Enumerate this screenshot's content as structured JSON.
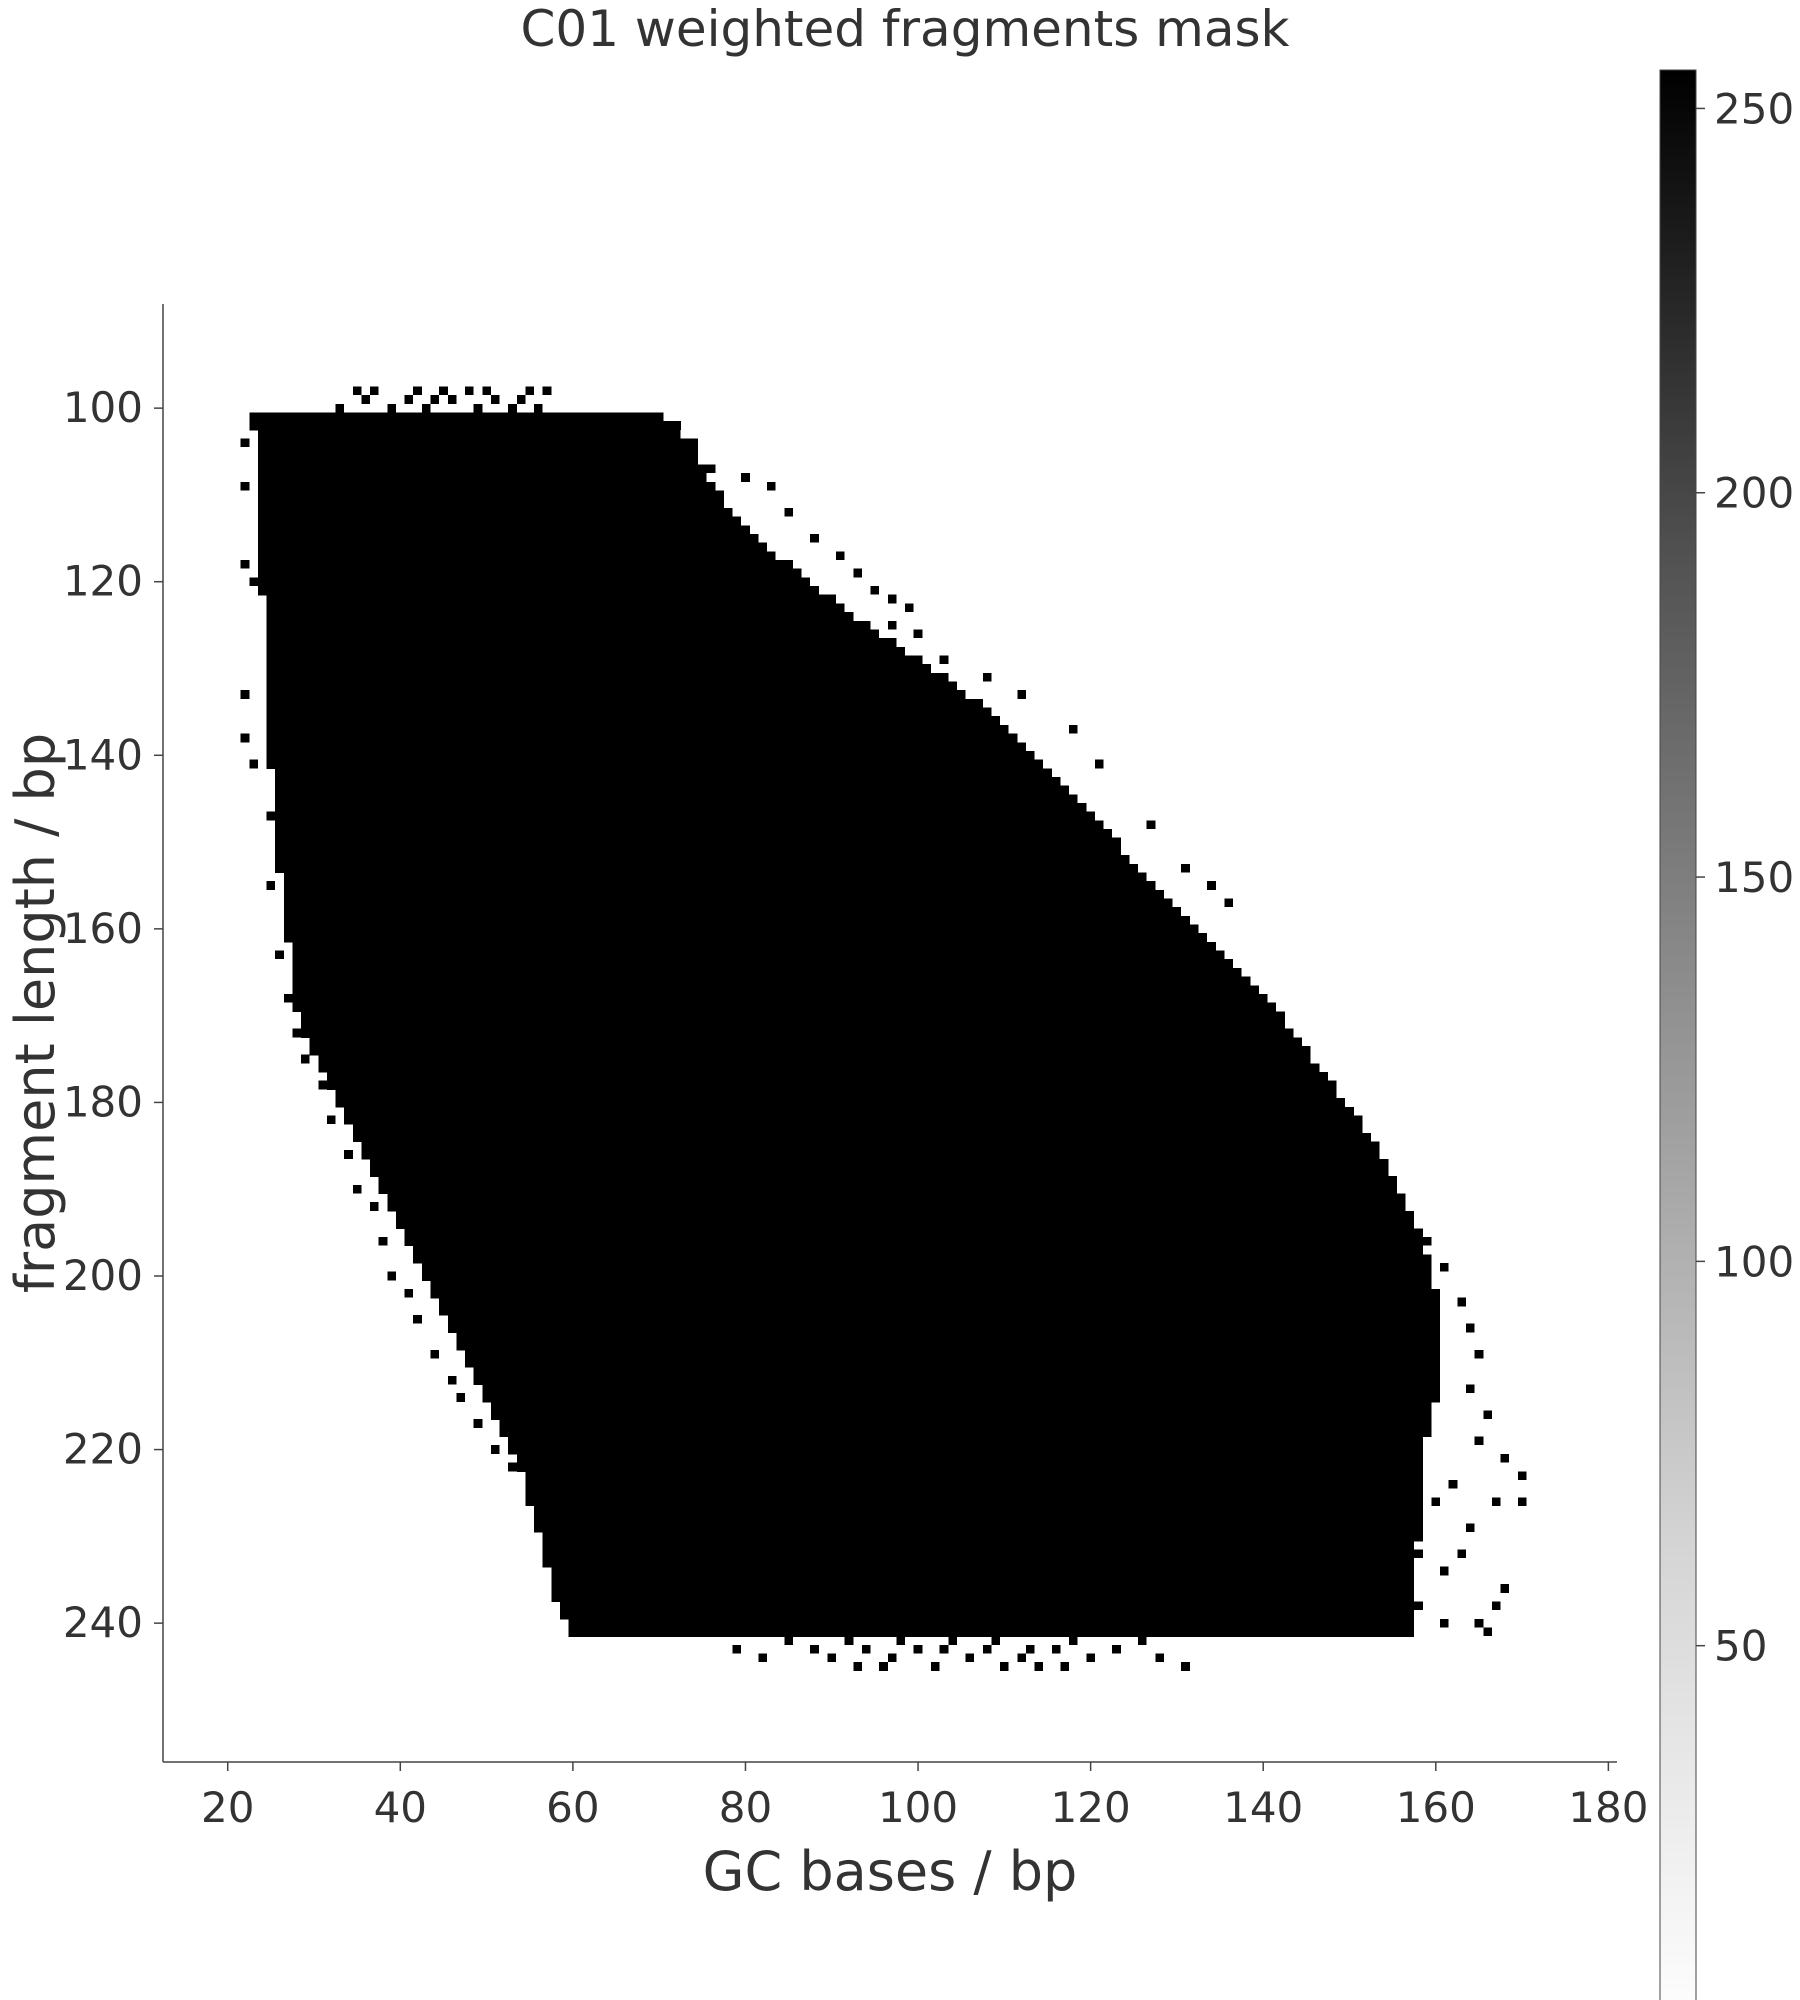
{
  "chart_data": {
    "type": "heatmap",
    "title": "C01 weighted fragments mask",
    "xlabel": "GC bases / bp",
    "ylabel": "fragment length / bp",
    "xlim": [
      12.5,
      181.0
    ],
    "ylim": [
      88.0,
      256.0
    ],
    "y_inverted": true,
    "xticks": [
      20,
      40,
      60,
      80,
      100,
      120,
      140,
      160,
      180
    ],
    "yticks": [
      100,
      120,
      140,
      160,
      180,
      200,
      220,
      240
    ],
    "colormap": "Greys",
    "colorbar": {
      "range": [
        0,
        255
      ],
      "ticks": [
        50,
        100,
        150,
        200,
        250
      ]
    },
    "mask_value": 255,
    "cell_size_bp": 1,
    "core_region": {
      "y_range": [
        101,
        241
      ],
      "row_bounds_gc": [
        [
          101,
          23,
          70
        ],
        [
          104,
          24,
          73
        ],
        [
          108,
          24,
          75
        ],
        [
          112,
          24,
          78
        ],
        [
          116,
          24,
          82
        ],
        [
          120,
          24,
          87
        ],
        [
          124,
          25,
          92
        ],
        [
          128,
          25,
          98
        ],
        [
          132,
          25,
          104
        ],
        [
          136,
          25,
          109
        ],
        [
          140,
          25,
          113
        ],
        [
          144,
          26,
          117
        ],
        [
          148,
          26,
          121
        ],
        [
          152,
          26,
          124
        ],
        [
          156,
          27,
          128
        ],
        [
          160,
          27,
          132
        ],
        [
          164,
          28,
          136
        ],
        [
          168,
          28,
          140
        ],
        [
          172,
          29,
          143
        ],
        [
          176,
          31,
          146
        ],
        [
          180,
          33,
          149
        ],
        [
          184,
          35,
          152
        ],
        [
          188,
          37,
          154
        ],
        [
          192,
          39,
          156
        ],
        [
          196,
          41,
          158
        ],
        [
          200,
          43,
          159
        ],
        [
          204,
          45,
          160
        ],
        [
          208,
          47,
          160
        ],
        [
          212,
          49,
          160
        ],
        [
          216,
          51,
          159
        ],
        [
          220,
          53,
          158
        ],
        [
          224,
          55,
          158
        ],
        [
          228,
          56,
          158
        ],
        [
          232,
          57,
          157
        ],
        [
          236,
          58,
          157
        ],
        [
          241,
          60,
          157
        ]
      ]
    },
    "scatter_cells": [
      [
        35,
        98
      ],
      [
        37,
        98
      ],
      [
        42,
        98
      ],
      [
        45,
        98
      ],
      [
        48,
        98
      ],
      [
        50,
        98
      ],
      [
        55,
        98
      ],
      [
        57,
        98
      ],
      [
        36,
        99
      ],
      [
        41,
        99
      ],
      [
        44,
        99
      ],
      [
        46,
        99
      ],
      [
        51,
        99
      ],
      [
        54,
        99
      ],
      [
        33,
        100
      ],
      [
        39,
        100
      ],
      [
        43,
        100
      ],
      [
        49,
        100
      ],
      [
        53,
        100
      ],
      [
        56,
        100
      ],
      [
        72,
        102
      ],
      [
        74,
        104
      ],
      [
        76,
        107
      ],
      [
        80,
        108
      ],
      [
        83,
        109
      ],
      [
        85,
        112
      ],
      [
        88,
        115
      ],
      [
        91,
        117
      ],
      [
        93,
        119
      ],
      [
        95,
        121
      ],
      [
        97,
        122
      ],
      [
        99,
        123
      ],
      [
        97,
        125
      ],
      [
        100,
        126
      ],
      [
        103,
        129
      ],
      [
        108,
        131
      ],
      [
        112,
        133
      ],
      [
        118,
        137
      ],
      [
        121,
        141
      ],
      [
        127,
        148
      ],
      [
        131,
        153
      ],
      [
        134,
        155
      ],
      [
        136,
        157
      ],
      [
        22,
        104
      ],
      [
        22,
        109
      ],
      [
        22,
        118
      ],
      [
        23,
        120
      ],
      [
        22,
        133
      ],
      [
        22,
        138
      ],
      [
        23,
        141
      ],
      [
        25,
        147
      ],
      [
        25,
        155
      ],
      [
        26,
        163
      ],
      [
        27,
        168
      ],
      [
        28,
        172
      ],
      [
        29,
        175
      ],
      [
        31,
        178
      ],
      [
        32,
        182
      ],
      [
        34,
        186
      ],
      [
        35,
        190
      ],
      [
        37,
        192
      ],
      [
        38,
        196
      ],
      [
        39,
        200
      ],
      [
        41,
        202
      ],
      [
        42,
        205
      ],
      [
        44,
        209
      ],
      [
        46,
        212
      ],
      [
        47,
        214
      ],
      [
        49,
        217
      ],
      [
        51,
        220
      ],
      [
        53,
        222
      ],
      [
        55,
        226
      ],
      [
        56,
        229
      ],
      [
        57,
        232
      ],
      [
        59,
        235
      ],
      [
        60,
        238
      ],
      [
        142,
        178
      ],
      [
        145,
        180
      ],
      [
        150,
        186
      ],
      [
        153,
        188
      ],
      [
        155,
        192
      ],
      [
        157,
        194
      ],
      [
        159,
        196
      ],
      [
        161,
        199
      ],
      [
        163,
        203
      ],
      [
        164,
        206
      ],
      [
        165,
        209
      ],
      [
        164,
        213
      ],
      [
        166,
        216
      ],
      [
        165,
        219
      ],
      [
        168,
        221
      ],
      [
        170,
        223
      ],
      [
        167,
        226
      ],
      [
        164,
        229
      ],
      [
        163,
        232
      ],
      [
        161,
        234
      ],
      [
        168,
        236
      ],
      [
        167,
        238
      ],
      [
        165,
        240
      ],
      [
        166,
        241
      ],
      [
        150,
        222
      ],
      [
        153,
        224
      ],
      [
        156,
        227
      ],
      [
        158,
        230
      ],
      [
        160,
        226
      ],
      [
        162,
        224
      ],
      [
        158,
        232
      ],
      [
        156,
        236
      ],
      [
        158,
        238
      ],
      [
        161,
        240
      ],
      [
        170,
        226
      ],
      [
        79,
        243
      ],
      [
        82,
        244
      ],
      [
        85,
        242
      ],
      [
        88,
        243
      ],
      [
        90,
        244
      ],
      [
        92,
        242
      ],
      [
        94,
        243
      ],
      [
        96,
        245
      ],
      [
        98,
        242
      ],
      [
        100,
        243
      ],
      [
        102,
        245
      ],
      [
        104,
        242
      ],
      [
        106,
        244
      ],
      [
        108,
        243
      ],
      [
        110,
        245
      ],
      [
        112,
        244
      ],
      [
        114,
        245
      ],
      [
        116,
        243
      ],
      [
        118,
        242
      ],
      [
        120,
        244
      ],
      [
        123,
        243
      ],
      [
        126,
        242
      ],
      [
        128,
        244
      ],
      [
        131,
        245
      ],
      [
        93,
        245
      ],
      [
        97,
        244
      ],
      [
        103,
        243
      ],
      [
        109,
        242
      ],
      [
        113,
        243
      ],
      [
        117,
        245
      ]
    ]
  }
}
